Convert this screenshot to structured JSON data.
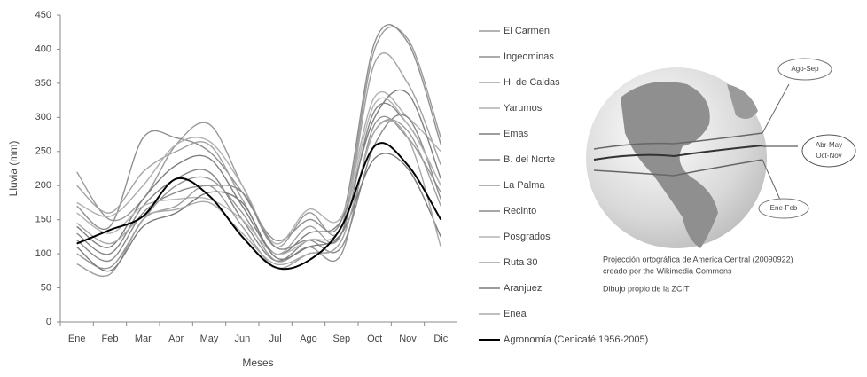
{
  "chart_data": {
    "type": "line",
    "x_label": "Meses",
    "y_label": "Lluvia (mm)",
    "categories": [
      "Ene",
      "Feb",
      "Mar",
      "Abr",
      "May",
      "Jun",
      "Jul",
      "Ago",
      "Sep",
      "Oct",
      "Nov",
      "Dic"
    ],
    "ylim": [
      0,
      450
    ],
    "yticks": [
      0,
      50,
      100,
      150,
      200,
      250,
      300,
      350,
      400,
      450
    ],
    "series": [
      {
        "name": "El Carmen",
        "color": "#9a9a9a",
        "values": [
          220,
          150,
          180,
          260,
          290,
          200,
          110,
          160,
          140,
          400,
          415,
          270
        ]
      },
      {
        "name": "Ingeominas",
        "color": "#8f8f8f",
        "values": [
          170,
          140,
          270,
          270,
          250,
          190,
          120,
          150,
          150,
          410,
          410,
          260
        ]
      },
      {
        "name": "H. de Caldas",
        "color": "#a2a2a2",
        "values": [
          200,
          160,
          220,
          250,
          260,
          180,
          100,
          140,
          130,
          380,
          350,
          230
        ]
      },
      {
        "name": "Yarumos",
        "color": "#b0b0b0",
        "values": [
          175,
          155,
          200,
          260,
          265,
          200,
          115,
          165,
          155,
          330,
          300,
          250
        ]
      },
      {
        "name": "Emas",
        "color": "#7f7f7f",
        "values": [
          140,
          110,
          180,
          230,
          240,
          170,
          100,
          130,
          150,
          300,
          335,
          210
        ]
      },
      {
        "name": "B. del Norte",
        "color": "#868686",
        "values": [
          130,
          100,
          170,
          210,
          220,
          150,
          90,
          120,
          130,
          310,
          290,
          200
        ]
      },
      {
        "name": "La Palma",
        "color": "#959595",
        "values": [
          100,
          80,
          150,
          200,
          210,
          160,
          90,
          110,
          100,
          290,
          270,
          190
        ]
      },
      {
        "name": "Recinto",
        "color": "#8a8a8a",
        "values": [
          120,
          90,
          160,
          190,
          200,
          190,
          110,
          120,
          110,
          260,
          300,
          180
        ]
      },
      {
        "name": "Posgrados",
        "color": "#b5b5b5",
        "values": [
          160,
          130,
          170,
          180,
          180,
          150,
          100,
          120,
          140,
          320,
          290,
          200
        ]
      },
      {
        "name": "Ruta 30",
        "color": "#9d9d9d",
        "values": [
          85,
          70,
          150,
          170,
          200,
          140,
          80,
          100,
          120,
          280,
          280,
          170
        ]
      },
      {
        "name": "Aranjuez",
        "color": "#7a7a7a",
        "values": [
          110,
          75,
          140,
          160,
          190,
          175,
          95,
          110,
          130,
          240,
          225,
          125
        ]
      },
      {
        "name": "Enea",
        "color": "#a8a8a8",
        "values": [
          145,
          115,
          155,
          165,
          175,
          130,
          85,
          100,
          120,
          280,
          270,
          110
        ]
      },
      {
        "name": "Agronomía (Cenicafé 1956-2005)",
        "color": "#000000",
        "values": [
          115,
          135,
          155,
          210,
          185,
          125,
          80,
          90,
          140,
          258,
          230,
          150
        ]
      }
    ]
  },
  "figure": {
    "callouts": [
      "Ago-Sep",
      "Abr-May",
      "Oct-Nov",
      "Ene-Feb"
    ],
    "caption": [
      "Projección ortográfica de America Central (20090922)",
      "creado por the Wikimedia Commons",
      "Dibujo propio de la ZCIT"
    ]
  }
}
